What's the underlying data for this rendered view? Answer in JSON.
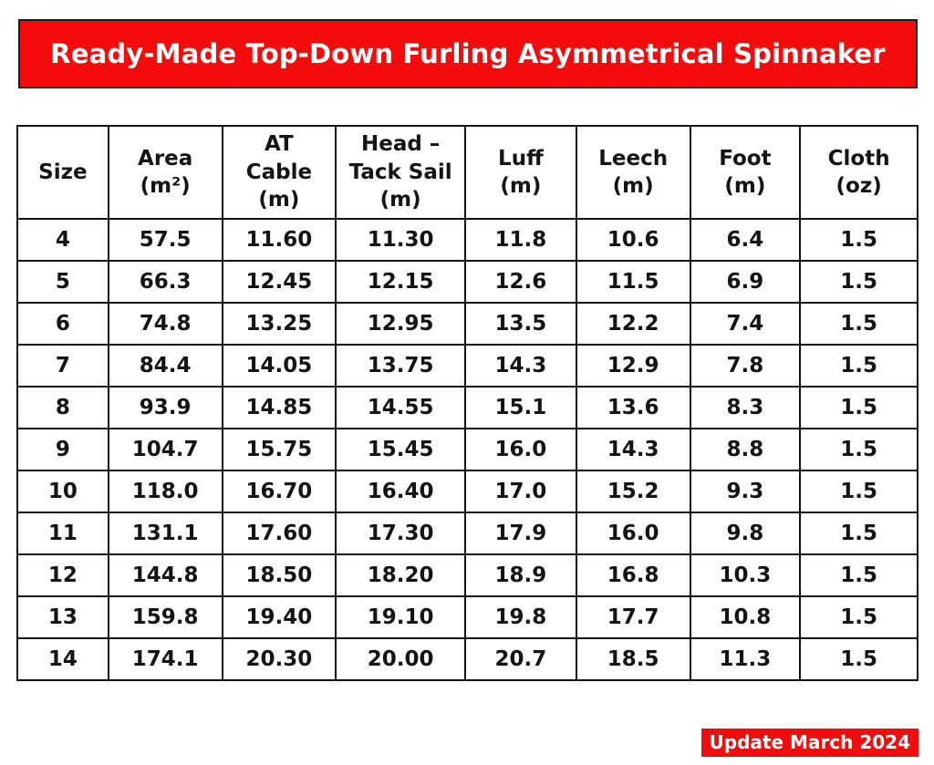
{
  "banner": {
    "title": "Ready-Made Top-Down Furling Asymmetrical Spinnaker"
  },
  "colors": {
    "accent_red": "#f40b0b",
    "banner_border": "#1b1b1b",
    "table_border": "#121212",
    "text": "#141414"
  },
  "table": {
    "columns": [
      {
        "id": "size",
        "label": "Size"
      },
      {
        "id": "area",
        "label": "Area\n(m²)"
      },
      {
        "id": "at-cable",
        "label": "AT\nCable\n(m)"
      },
      {
        "id": "head-tack",
        "label": "Head –\nTack Sail\n(m)"
      },
      {
        "id": "luff",
        "label": "Luff\n(m)"
      },
      {
        "id": "leech",
        "label": "Leech\n(m)"
      },
      {
        "id": "foot",
        "label": "Foot\n(m)"
      },
      {
        "id": "cloth",
        "label": "Cloth\n(oz)"
      }
    ],
    "rows": [
      [
        "4",
        "57.5",
        "11.60",
        "11.30",
        "11.8",
        "10.6",
        "6.4",
        "1.5"
      ],
      [
        "5",
        "66.3",
        "12.45",
        "12.15",
        "12.6",
        "11.5",
        "6.9",
        "1.5"
      ],
      [
        "6",
        "74.8",
        "13.25",
        "12.95",
        "13.5",
        "12.2",
        "7.4",
        "1.5"
      ],
      [
        "7",
        "84.4",
        "14.05",
        "13.75",
        "14.3",
        "12.9",
        "7.8",
        "1.5"
      ],
      [
        "8",
        "93.9",
        "14.85",
        "14.55",
        "15.1",
        "13.6",
        "8.3",
        "1.5"
      ],
      [
        "9",
        "104.7",
        "15.75",
        "15.45",
        "16.0",
        "14.3",
        "8.8",
        "1.5"
      ],
      [
        "10",
        "118.0",
        "16.70",
        "16.40",
        "17.0",
        "15.2",
        "9.3",
        "1.5"
      ],
      [
        "11",
        "131.1",
        "17.60",
        "17.30",
        "17.9",
        "16.0",
        "9.8",
        "1.5"
      ],
      [
        "12",
        "144.8",
        "18.50",
        "18.20",
        "18.9",
        "16.8",
        "10.3",
        "1.5"
      ],
      [
        "13",
        "159.8",
        "19.40",
        "19.10",
        "19.8",
        "17.7",
        "10.8",
        "1.5"
      ],
      [
        "14",
        "174.1",
        "20.30",
        "20.00",
        "20.7",
        "18.5",
        "11.3",
        "1.5"
      ]
    ]
  },
  "footer": {
    "update_badge": "Update March 2024"
  }
}
